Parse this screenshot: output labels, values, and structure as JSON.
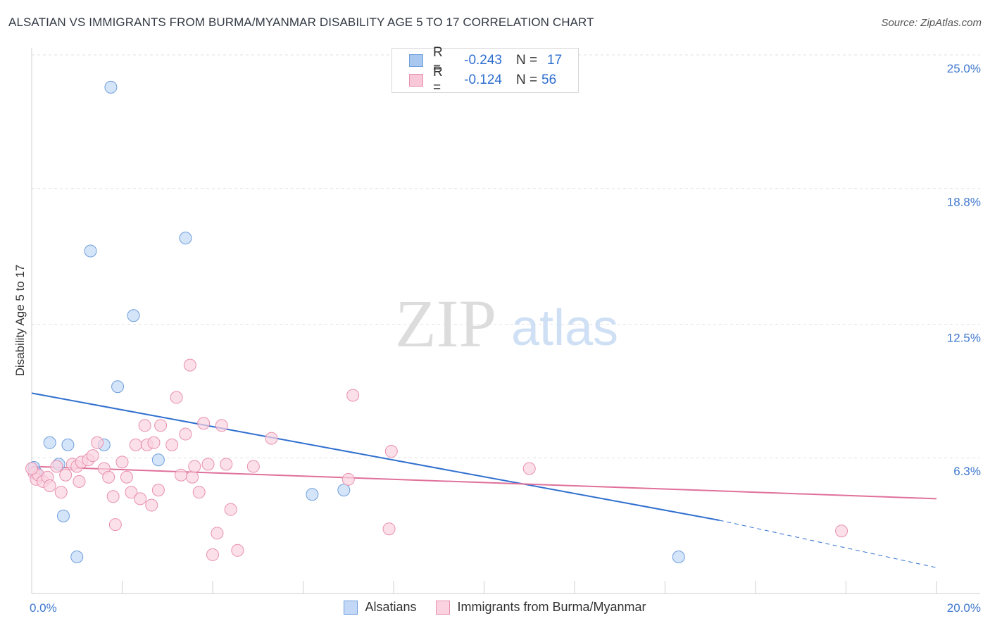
{
  "header": {
    "title": "ALSATIAN VS IMMIGRANTS FROM BURMA/MYANMAR DISABILITY AGE 5 TO 17 CORRELATION CHART",
    "source": "Source: ZipAtlas.com"
  },
  "watermark": {
    "part1": "ZIP",
    "part2": "atlas"
  },
  "legend": {
    "rows": [
      {
        "r_label": "R =",
        "r_value": "-0.243",
        "n_label": "N =",
        "n_value": "17",
        "color": "#a8c8f0",
        "border": "#6f9fdc"
      },
      {
        "r_label": "R =",
        "r_value": "-0.124",
        "n_label": "N =",
        "n_value": "56",
        "color": "#f8c8d8",
        "border": "#e890ae"
      }
    ]
  },
  "bottom_legend": [
    {
      "label": "Alsatians",
      "color": "#c2d8f6",
      "border": "#6f9fdc"
    },
    {
      "label": "Immigrants from Burma/Myanmar",
      "color": "#fbd3e0",
      "border": "#e890ae"
    }
  ],
  "chart_data": {
    "type": "scatter",
    "title": "ALSATIAN VS IMMIGRANTS FROM BURMA/MYANMAR DISABILITY AGE 5 TO 17 CORRELATION CHART",
    "xlabel": "",
    "ylabel": "Disability Age 5 to 17",
    "xlim": [
      0,
      20
    ],
    "ylim": [
      0,
      25
    ],
    "x_tick_labels": [
      "0.0%",
      "20.0%"
    ],
    "y_ticks": [
      {
        "value": 6.3,
        "label": "6.3%"
      },
      {
        "value": 12.5,
        "label": "12.5%"
      },
      {
        "value": 18.8,
        "label": "18.8%"
      },
      {
        "value": 25.0,
        "label": "25.0%"
      }
    ],
    "series": [
      {
        "name": "Alsatians",
        "color": "#6f9fdc",
        "fill": "#c2d8f6",
        "trend_color": "#2f6fcf",
        "trend": {
          "x0": 0,
          "y0": 9.3,
          "x1": 15.2,
          "y1": 3.4,
          "dash_x1": 20,
          "dash_y1": 1.2
        },
        "points": [
          {
            "x": 0.05,
            "y": 5.85
          },
          {
            "x": 0.1,
            "y": 5.6
          },
          {
            "x": 0.4,
            "y": 7.0
          },
          {
            "x": 0.6,
            "y": 6.0
          },
          {
            "x": 0.7,
            "y": 3.6
          },
          {
            "x": 0.8,
            "y": 6.9
          },
          {
            "x": 1.0,
            "y": 1.7
          },
          {
            "x": 1.3,
            "y": 15.9
          },
          {
            "x": 1.6,
            "y": 6.9
          },
          {
            "x": 1.75,
            "y": 23.5
          },
          {
            "x": 1.9,
            "y": 9.6
          },
          {
            "x": 2.25,
            "y": 12.9
          },
          {
            "x": 2.8,
            "y": 6.2
          },
          {
            "x": 3.4,
            "y": 16.5
          },
          {
            "x": 6.2,
            "y": 4.6
          },
          {
            "x": 6.9,
            "y": 4.8
          },
          {
            "x": 14.3,
            "y": 1.7
          }
        ]
      },
      {
        "name": "Immigrants from Burma/Myanmar",
        "color": "#e890ae",
        "fill": "#fbd3e0",
        "trend_color": "#e0709a",
        "trend": {
          "x0": 0,
          "y0": 5.9,
          "x1": 20,
          "y1": 4.4
        },
        "points": [
          {
            "x": 0.05,
            "y": 5.6
          },
          {
            "x": 0.1,
            "y": 5.3
          },
          {
            "x": 0.15,
            "y": 5.5
          },
          {
            "x": 0.25,
            "y": 5.2
          },
          {
            "x": 0.35,
            "y": 5.4
          },
          {
            "x": 0.4,
            "y": 5.0
          },
          {
            "x": 0.55,
            "y": 5.9
          },
          {
            "x": 0.65,
            "y": 4.7
          },
          {
            "x": 0.75,
            "y": 5.5
          },
          {
            "x": 0.9,
            "y": 6.0
          },
          {
            "x": 1.0,
            "y": 5.9
          },
          {
            "x": 1.05,
            "y": 5.2
          },
          {
            "x": 1.1,
            "y": 6.1
          },
          {
            "x": 1.25,
            "y": 6.2
          },
          {
            "x": 1.35,
            "y": 6.4
          },
          {
            "x": 1.45,
            "y": 7.0
          },
          {
            "x": 1.6,
            "y": 5.8
          },
          {
            "x": 1.7,
            "y": 5.4
          },
          {
            "x": 1.8,
            "y": 4.5
          },
          {
            "x": 1.85,
            "y": 3.2
          },
          {
            "x": 2.0,
            "y": 6.1
          },
          {
            "x": 2.1,
            "y": 5.4
          },
          {
            "x": 2.2,
            "y": 4.7
          },
          {
            "x": 2.3,
            "y": 6.9
          },
          {
            "x": 2.4,
            "y": 4.4
          },
          {
            "x": 2.5,
            "y": 7.8
          },
          {
            "x": 2.55,
            "y": 6.9
          },
          {
            "x": 2.65,
            "y": 4.1
          },
          {
            "x": 2.7,
            "y": 7.0
          },
          {
            "x": 2.8,
            "y": 4.8
          },
          {
            "x": 2.85,
            "y": 7.8
          },
          {
            "x": 3.1,
            "y": 6.9
          },
          {
            "x": 3.2,
            "y": 9.1
          },
          {
            "x": 3.3,
            "y": 5.5
          },
          {
            "x": 3.4,
            "y": 7.4
          },
          {
            "x": 3.5,
            "y": 10.6
          },
          {
            "x": 3.55,
            "y": 5.4
          },
          {
            "x": 3.6,
            "y": 5.9
          },
          {
            "x": 3.7,
            "y": 4.7
          },
          {
            "x": 3.8,
            "y": 7.9
          },
          {
            "x": 3.9,
            "y": 6.0
          },
          {
            "x": 4.0,
            "y": 1.8
          },
          {
            "x": 4.1,
            "y": 2.8
          },
          {
            "x": 4.2,
            "y": 7.8
          },
          {
            "x": 4.3,
            "y": 6.0
          },
          {
            "x": 4.4,
            "y": 3.9
          },
          {
            "x": 4.55,
            "y": 2.0
          },
          {
            "x": 4.9,
            "y": 5.9
          },
          {
            "x": 5.3,
            "y": 7.2
          },
          {
            "x": 7.0,
            "y": 5.3
          },
          {
            "x": 7.1,
            "y": 9.2
          },
          {
            "x": 7.9,
            "y": 3.0
          },
          {
            "x": 7.95,
            "y": 6.6
          },
          {
            "x": 11.0,
            "y": 5.8
          },
          {
            "x": 17.9,
            "y": 2.9
          },
          {
            "x": 0.0,
            "y": 5.8
          }
        ]
      }
    ]
  }
}
